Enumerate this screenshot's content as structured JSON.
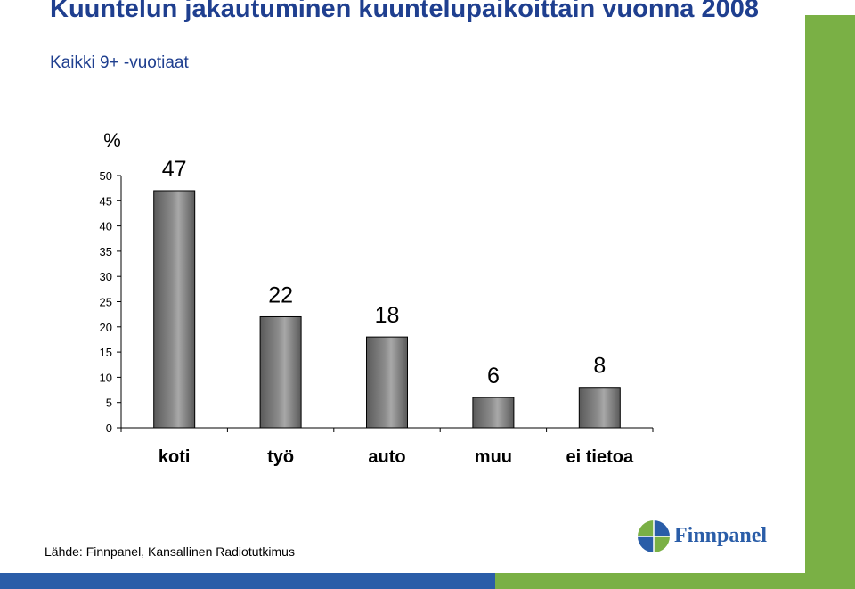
{
  "header": {
    "title": "Kuuntelun jakautuminen kuuntelupaikoittain vuonna 2008",
    "subtitle": "Kaikki 9+ -vuotiaat"
  },
  "footer": {
    "source": "Lähde: Finnpanel, Kansallinen Radiotutkimus",
    "logo_text": "Finnpanel"
  },
  "colors": {
    "title": "#1f3f8f",
    "accent_green": "#7ab045",
    "accent_blue": "#2a5da8",
    "bar": "#8c8c8c"
  },
  "chart_data": {
    "type": "bar",
    "unit_label": "%",
    "categories": [
      "koti",
      "työ",
      "auto",
      "muu",
      "ei tietoa"
    ],
    "values": [
      47,
      22,
      18,
      6,
      8
    ],
    "ylim": [
      0,
      50
    ],
    "yticks": [
      0,
      5,
      10,
      15,
      20,
      25,
      30,
      35,
      40,
      45,
      50
    ],
    "grid": false,
    "legend": "none"
  }
}
